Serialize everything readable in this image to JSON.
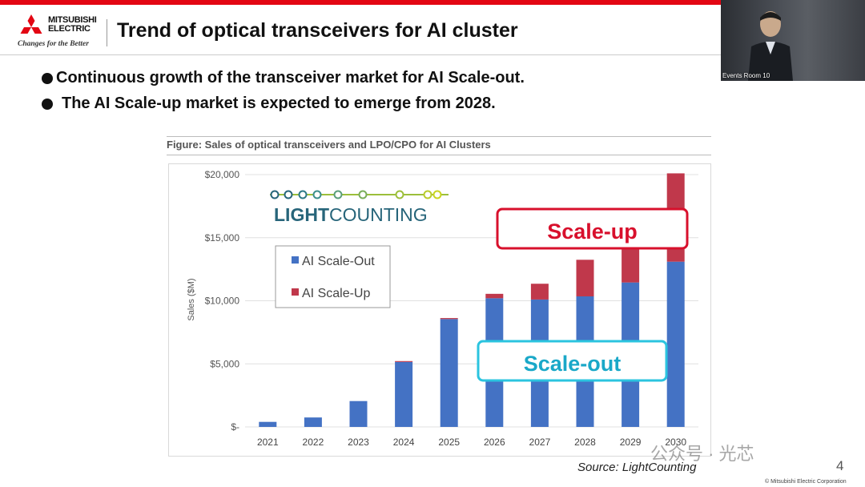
{
  "header": {
    "brand_line1": "MITSUBISHI",
    "brand_line2": "ELECTRIC",
    "tagline": "Changes for the Better",
    "title": "Trend of optical transceivers for AI cluster"
  },
  "video": {
    "label": "Events Room 10"
  },
  "bullets": [
    "Continuous growth of the transceiver market for AI Scale-out.",
    "The AI Scale-up market is expected to emerge from 2028."
  ],
  "figure": {
    "title": "Figure: Sales of optical transceivers and LPO/CPO for AI Clusters",
    "logo_text_a": "LIGHT",
    "logo_text_b": "COUNTING",
    "callout_scaleup": "Scale-up",
    "callout_scaleout": "Scale-out",
    "source": "Source: LightCounting"
  },
  "chart_data": {
    "type": "bar",
    "stacked": true,
    "title": "Figure: Sales of optical transceivers and LPO/CPO for AI Clusters",
    "xlabel": "",
    "ylabel": "Sales ($M)",
    "categories": [
      "2021",
      "2022",
      "2023",
      "2024",
      "2025",
      "2026",
      "2027",
      "2028",
      "2029",
      "2030"
    ],
    "series": [
      {
        "name": "AI Scale-Out",
        "color": "#4472c4",
        "values": [
          400,
          750,
          2050,
          5150,
          8550,
          10200,
          10100,
          10350,
          11450,
          13100
        ]
      },
      {
        "name": "AI Scale-Up",
        "color": "#c0384b",
        "values": [
          0,
          0,
          0,
          70,
          80,
          350,
          1250,
          2900,
          2800,
          7000
        ]
      }
    ],
    "ylim": [
      0,
      20000
    ],
    "yticks": [
      0,
      5000,
      10000,
      15000,
      20000
    ],
    "ytick_labels": [
      "$-",
      "$5,000",
      "$10,000",
      "$15,000",
      "$20,000"
    ],
    "grid": true,
    "legend": "upper-left inside plot"
  },
  "footer": {
    "page": "4",
    "copyright": "© Mitsubishi Electric Corporation",
    "watermark": "公众号 · 光芯"
  }
}
